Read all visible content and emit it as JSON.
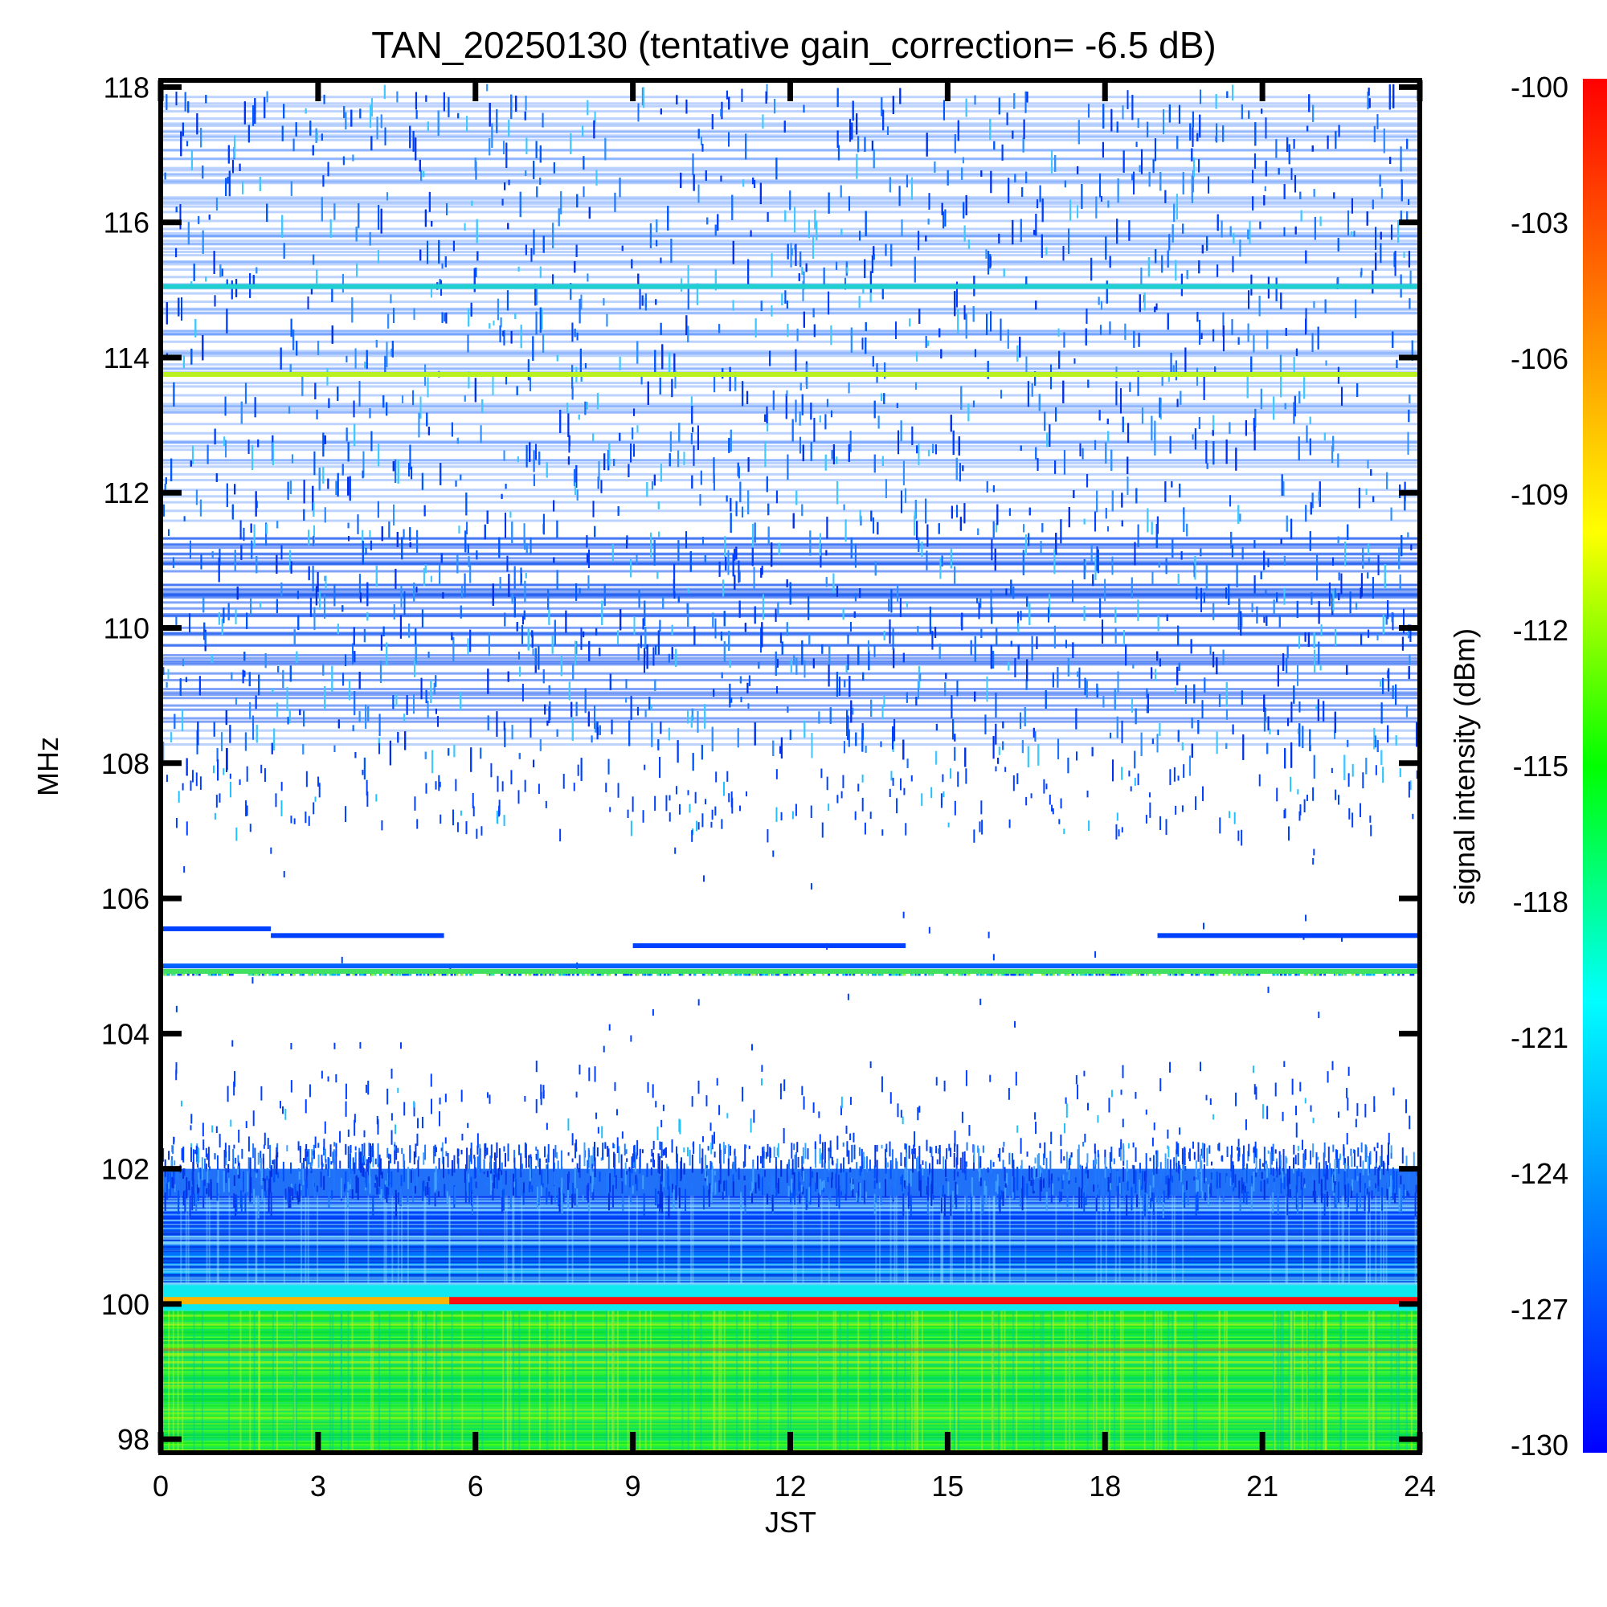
{
  "chart_data": {
    "type": "heatmap",
    "title": "TAN_20250130 (tentative gain_correction= -6.5 dB)",
    "xlabel": "JST",
    "ylabel": "MHz",
    "colorbar_label": "signal intensity (dBm)",
    "xlim": [
      0,
      24
    ],
    "ylim": [
      97.8,
      118.1
    ],
    "x_ticks": [
      "0",
      "3",
      "6",
      "9",
      "12",
      "15",
      "18",
      "21",
      "24"
    ],
    "y_ticks": [
      "98",
      "100",
      "102",
      "104",
      "106",
      "108",
      "110",
      "112",
      "114",
      "116",
      "118"
    ],
    "colorbar_range": [
      -130,
      -100
    ],
    "colorbar_ticks": [
      "-100",
      "-103",
      "-106",
      "-109",
      "-112",
      "-115",
      "-118",
      "-121",
      "-124",
      "-127",
      "-130"
    ],
    "colormap": [
      "#0000ff",
      "#0080ff",
      "#00ffff",
      "#00ff00",
      "#ffff00",
      "#ff8000",
      "#ff0000"
    ],
    "regions": [
      {
        "mhz": [
          97.8,
          99.9
        ],
        "level": "green background (~ -117 dBm)"
      },
      {
        "mhz": [
          99.9,
          100.0
        ],
        "level": "cyan (~ -123 dBm)"
      },
      {
        "mhz": [
          100.3,
          101.6
        ],
        "level": "blue gradient (~ -127 dBm)"
      },
      {
        "mhz": [
          101.6,
          102.4
        ],
        "level": "dense blue noise (~ -129 dBm)"
      },
      {
        "mhz": [
          108.0,
          118.0
        ],
        "level": "scattered blue noise (~ -129 dBm)"
      }
    ],
    "lines": [
      {
        "mhz": 100.05,
        "from": 0,
        "to": 5.5,
        "dbm": -108,
        "color": "#ffb400"
      },
      {
        "mhz": 100.05,
        "from": 5.5,
        "to": 24,
        "dbm": -100,
        "color": "#ff1010"
      },
      {
        "mhz": 105.0,
        "from": 0,
        "to": 24,
        "dbm": -126,
        "color": "#0060ff"
      },
      {
        "mhz": 104.92,
        "from": 0,
        "to": 24,
        "dbm": -119,
        "color": "#40e060"
      },
      {
        "mhz": 105.55,
        "from": 0,
        "to": 2.1,
        "dbm": -129,
        "color": "#0040ff"
      },
      {
        "mhz": 105.45,
        "from": 2.1,
        "to": 5.4,
        "dbm": -129,
        "color": "#0040ff"
      },
      {
        "mhz": 105.3,
        "from": 9.0,
        "to": 14.2,
        "dbm": -129,
        "color": "#0040ff"
      },
      {
        "mhz": 105.45,
        "from": 19.0,
        "to": 24,
        "dbm": -129,
        "color": "#0040ff"
      },
      {
        "mhz": 113.75,
        "from": 0,
        "to": 24,
        "dbm": -112,
        "color": "#b8f020"
      },
      {
        "mhz": 115.05,
        "from": 0,
        "to": 24,
        "dbm": -121,
        "color": "#20d0d0"
      }
    ]
  }
}
